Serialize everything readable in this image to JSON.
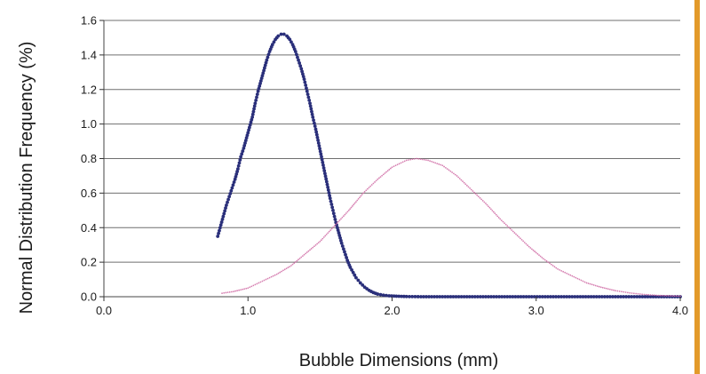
{
  "chart_data": {
    "type": "scatter",
    "title": "",
    "xlabel": "Bubble Dimensions (mm)",
    "ylabel": "Normal Distribution Frequency (%)",
    "xlim": [
      0.0,
      4.0
    ],
    "ylim": [
      0.0,
      1.6
    ],
    "x_ticks": [
      "0.0",
      "1.0",
      "2.0",
      "3.0",
      "4.0"
    ],
    "y_ticks": [
      "0.0",
      "0.2",
      "0.4",
      "0.6",
      "0.8",
      "1.0",
      "1.2",
      "1.4",
      "1.6"
    ],
    "grid": true,
    "legend": "none",
    "series": [
      {
        "color": "#2a2f7a",
        "points": [
          [
            0.79,
            0.35
          ],
          [
            0.85,
            0.53
          ],
          [
            0.87,
            0.58
          ],
          [
            0.89,
            0.63
          ],
          [
            0.91,
            0.68
          ],
          [
            0.93,
            0.74
          ],
          [
            0.95,
            0.81
          ],
          [
            0.97,
            0.86
          ],
          [
            0.99,
            0.92
          ],
          [
            1.01,
            0.98
          ],
          [
            1.03,
            1.04
          ],
          [
            1.05,
            1.12
          ],
          [
            1.07,
            1.19
          ],
          [
            1.09,
            1.25
          ],
          [
            1.11,
            1.31
          ],
          [
            1.13,
            1.37
          ],
          [
            1.15,
            1.42
          ],
          [
            1.17,
            1.46
          ],
          [
            1.19,
            1.49
          ],
          [
            1.21,
            1.51
          ],
          [
            1.23,
            1.52
          ],
          [
            1.25,
            1.52
          ],
          [
            1.27,
            1.51
          ],
          [
            1.29,
            1.49
          ],
          [
            1.31,
            1.46
          ],
          [
            1.33,
            1.42
          ],
          [
            1.35,
            1.37
          ],
          [
            1.37,
            1.32
          ],
          [
            1.39,
            1.26
          ],
          [
            1.41,
            1.19
          ],
          [
            1.43,
            1.12
          ],
          [
            1.45,
            1.04
          ],
          [
            1.47,
            0.97
          ],
          [
            1.49,
            0.89
          ],
          [
            1.51,
            0.81
          ],
          [
            1.53,
            0.73
          ],
          [
            1.55,
            0.65
          ],
          [
            1.57,
            0.57
          ],
          [
            1.59,
            0.5
          ],
          [
            1.61,
            0.43
          ],
          [
            1.63,
            0.37
          ],
          [
            1.65,
            0.31
          ],
          [
            1.67,
            0.26
          ],
          [
            1.69,
            0.21
          ],
          [
            1.71,
            0.17
          ],
          [
            1.73,
            0.14
          ],
          [
            1.75,
            0.11
          ],
          [
            1.78,
            0.08
          ],
          [
            1.81,
            0.055
          ],
          [
            1.84,
            0.037
          ],
          [
            1.87,
            0.024
          ],
          [
            1.9,
            0.015
          ],
          [
            1.94,
            0.009
          ],
          [
            1.98,
            0.005
          ],
          [
            2.03,
            0.003
          ],
          [
            2.1,
            0.001
          ],
          [
            2.2,
            0.0
          ],
          [
            2.35,
            0.0
          ],
          [
            2.5,
            0.0
          ],
          [
            2.65,
            0.0
          ],
          [
            2.8,
            0.0
          ],
          [
            2.95,
            0.0
          ],
          [
            3.1,
            0.0
          ],
          [
            3.25,
            0.0
          ],
          [
            3.4,
            0.0
          ],
          [
            3.55,
            0.0
          ],
          [
            3.7,
            0.0
          ],
          [
            3.85,
            0.0
          ],
          [
            4.0,
            0.0
          ]
        ]
      },
      {
        "color": "#cf6aa3",
        "points": [
          [
            0.82,
            0.02
          ],
          [
            0.9,
            0.03
          ],
          [
            1.0,
            0.05
          ],
          [
            1.1,
            0.09
          ],
          [
            1.2,
            0.13
          ],
          [
            1.3,
            0.18
          ],
          [
            1.4,
            0.25
          ],
          [
            1.5,
            0.32
          ],
          [
            1.6,
            0.41
          ],
          [
            1.7,
            0.5
          ],
          [
            1.8,
            0.6
          ],
          [
            1.9,
            0.68
          ],
          [
            2.0,
            0.75
          ],
          [
            2.1,
            0.79
          ],
          [
            2.17,
            0.8
          ],
          [
            2.25,
            0.79
          ],
          [
            2.35,
            0.76
          ],
          [
            2.45,
            0.7
          ],
          [
            2.55,
            0.62
          ],
          [
            2.65,
            0.54
          ],
          [
            2.75,
            0.45
          ],
          [
            2.85,
            0.37
          ],
          [
            2.95,
            0.29
          ],
          [
            3.05,
            0.22
          ],
          [
            3.15,
            0.16
          ],
          [
            3.25,
            0.12
          ],
          [
            3.35,
            0.08
          ],
          [
            3.45,
            0.055
          ],
          [
            3.55,
            0.035
          ],
          [
            3.65,
            0.022
          ],
          [
            3.75,
            0.013
          ],
          [
            3.85,
            0.007
          ],
          [
            4.0,
            0.003
          ]
        ]
      }
    ],
    "frame_accent_color": "#e39a2a"
  }
}
